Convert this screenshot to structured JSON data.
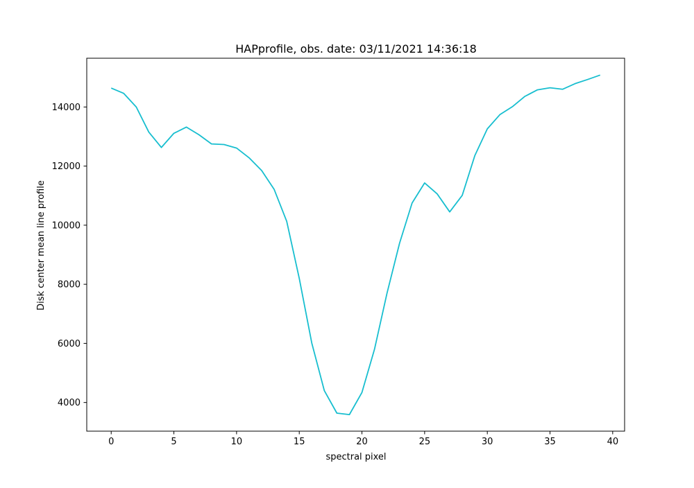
{
  "chart_data": {
    "type": "line",
    "title": "HAPprofile, obs. date: 03/11/2021 14:36:18",
    "xlabel": "spectral pixel",
    "ylabel": "Disk center mean line profile",
    "xlim": [
      -1.95,
      40.95
    ],
    "ylim": [
      3030,
      15650
    ],
    "xticks": [
      0,
      5,
      10,
      15,
      20,
      25,
      30,
      35,
      40
    ],
    "yticks": [
      4000,
      6000,
      8000,
      10000,
      12000,
      14000
    ],
    "grid": false,
    "line_color": "#17becf",
    "series": [
      {
        "x": [
          0,
          1,
          2,
          3,
          4,
          5,
          6,
          7,
          8,
          9,
          10,
          11,
          12,
          13,
          14,
          15,
          16,
          17,
          18,
          19,
          20,
          21,
          22,
          23,
          24,
          25,
          26,
          27,
          28,
          29,
          30,
          31,
          32,
          33,
          34,
          35,
          36,
          37,
          38,
          39
        ],
        "values": [
          14640,
          14460,
          14000,
          13150,
          12630,
          13110,
          13320,
          13060,
          12750,
          12730,
          12610,
          12280,
          11850,
          11210,
          10130,
          8200,
          6010,
          4400,
          3640,
          3590,
          4340,
          5800,
          7700,
          9390,
          10750,
          11430,
          11060,
          10450,
          11010,
          12350,
          13260,
          13740,
          14010,
          14360,
          14580,
          14650,
          14600,
          14790,
          14930,
          15080
        ]
      }
    ]
  }
}
